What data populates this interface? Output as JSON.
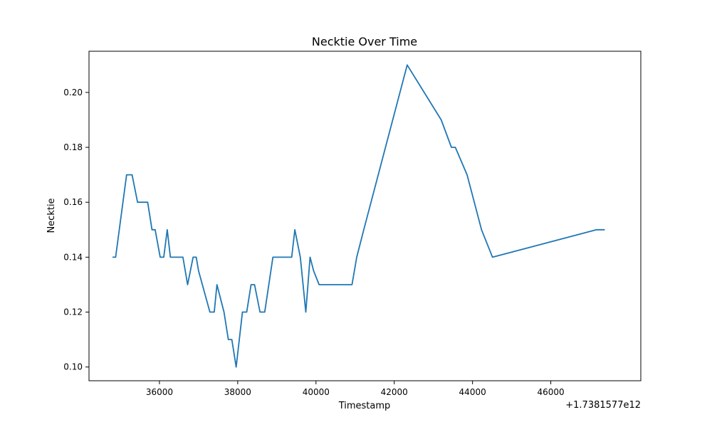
{
  "chart_data": {
    "type": "line",
    "title": "Necktie Over Time",
    "xlabel": "Timestamp",
    "ylabel": "Necktie",
    "x_offset_label": "+1.7381577e12",
    "xlim": [
      34200,
      48300
    ],
    "ylim": [
      0.095,
      0.215
    ],
    "xticks": [
      36000,
      38000,
      40000,
      42000,
      44000,
      46000
    ],
    "yticks": [
      0.1,
      0.12,
      0.14,
      0.16,
      0.18,
      0.2
    ],
    "xtick_labels": [
      "36000",
      "38000",
      "40000",
      "42000",
      "44000",
      "46000"
    ],
    "ytick_labels": [
      "0.10",
      "0.12",
      "0.14",
      "0.16",
      "0.18",
      "0.20"
    ],
    "grid": false,
    "line_color": "#1f77b4",
    "series": [
      {
        "x": [
          34800,
          34880,
          35160,
          35300,
          35440,
          35570,
          35700,
          35810,
          35890,
          36020,
          36110,
          36200,
          36280,
          36390,
          36600,
          36720,
          36860,
          36940,
          37000,
          37290,
          37400,
          37470,
          37650,
          37760,
          37850,
          37960,
          38120,
          38230,
          38340,
          38430,
          38570,
          38690,
          38900,
          39380,
          39460,
          39600,
          39740,
          39850,
          39940,
          40080,
          40920,
          41040,
          41220,
          42330,
          43200,
          43460,
          43560,
          43860,
          44230,
          44510,
          47170,
          47380
        ],
        "y": [
          0.14,
          0.14,
          0.17,
          0.17,
          0.16,
          0.16,
          0.16,
          0.15,
          0.15,
          0.14,
          0.14,
          0.15,
          0.14,
          0.14,
          0.14,
          0.13,
          0.14,
          0.14,
          0.135,
          0.12,
          0.12,
          0.13,
          0.12,
          0.11,
          0.11,
          0.1,
          0.12,
          0.12,
          0.13,
          0.13,
          0.12,
          0.12,
          0.14,
          0.14,
          0.15,
          0.14,
          0.12,
          0.14,
          0.135,
          0.13,
          0.13,
          0.14,
          0.15,
          0.21,
          0.19,
          0.18,
          0.18,
          0.17,
          0.15,
          0.14,
          0.15,
          0.15
        ]
      }
    ]
  }
}
